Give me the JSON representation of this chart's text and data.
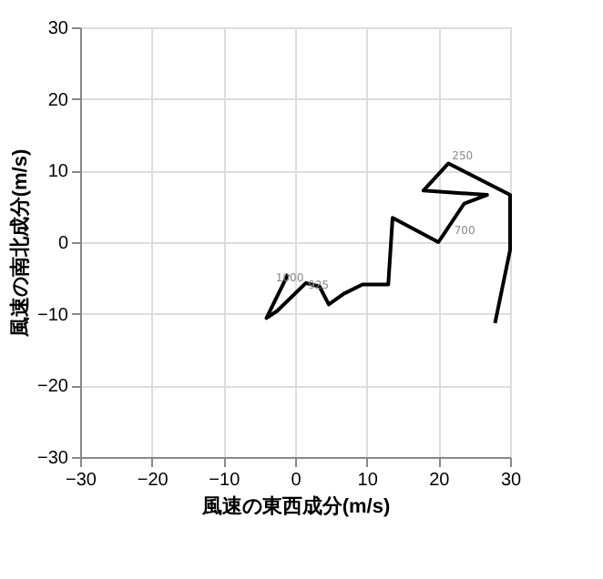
{
  "chart_data": {
    "type": "line",
    "xlabel": "風速の東西成分(m/s)",
    "ylabel": "風速の南北成分(m/s)",
    "x": [
      -1,
      -4,
      -2.5,
      1.5,
      3.4,
      4.7,
      6.8,
      9.4,
      13,
      13.6,
      20,
      23.6,
      26.8,
      17.9,
      21.4,
      30,
      30,
      27.9
    ],
    "series": [
      {
        "color": "#000000",
        "values": [
          -4.5,
          -10.6,
          -9.6,
          -5.7,
          -6.2,
          -8.7,
          -7.2,
          -5.9,
          -5.9,
          3.4,
          0,
          5.4,
          6.6,
          7.2,
          11,
          6.6,
          -1.1,
          -11.3
        ]
      }
    ],
    "xlim": [
      -30,
      30
    ],
    "ylim": [
      -30,
      30
    ],
    "xticks": [
      -30,
      -20,
      -10,
      0,
      10,
      20,
      30
    ],
    "yticks": [
      -30,
      -20,
      -10,
      0,
      10,
      20,
      30
    ],
    "grid": true,
    "marker": "none",
    "line_style": "solid",
    "annotations": [
      {
        "text": "1000",
        "x": -3.2,
        "y": -6
      },
      {
        "text": "925",
        "x": 1.3,
        "y": -7
      },
      {
        "text": "250",
        "x": 21.4,
        "y": 11
      },
      {
        "text": "700",
        "x": 21.7,
        "y": 0.6
      }
    ]
  }
}
